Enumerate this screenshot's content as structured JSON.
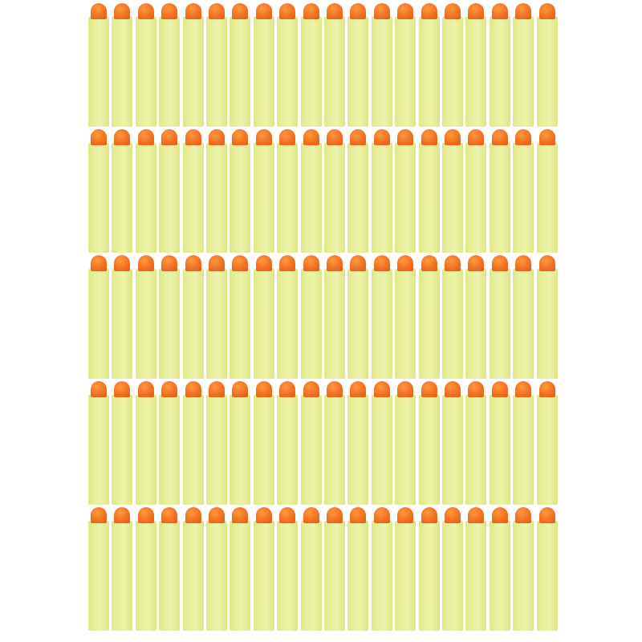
{
  "image": {
    "subject": "foam darts",
    "rows": 5,
    "columns": 20,
    "colors": {
      "body": "#e9ef9c",
      "tip": "#f27022",
      "background": "#ffffff"
    }
  }
}
